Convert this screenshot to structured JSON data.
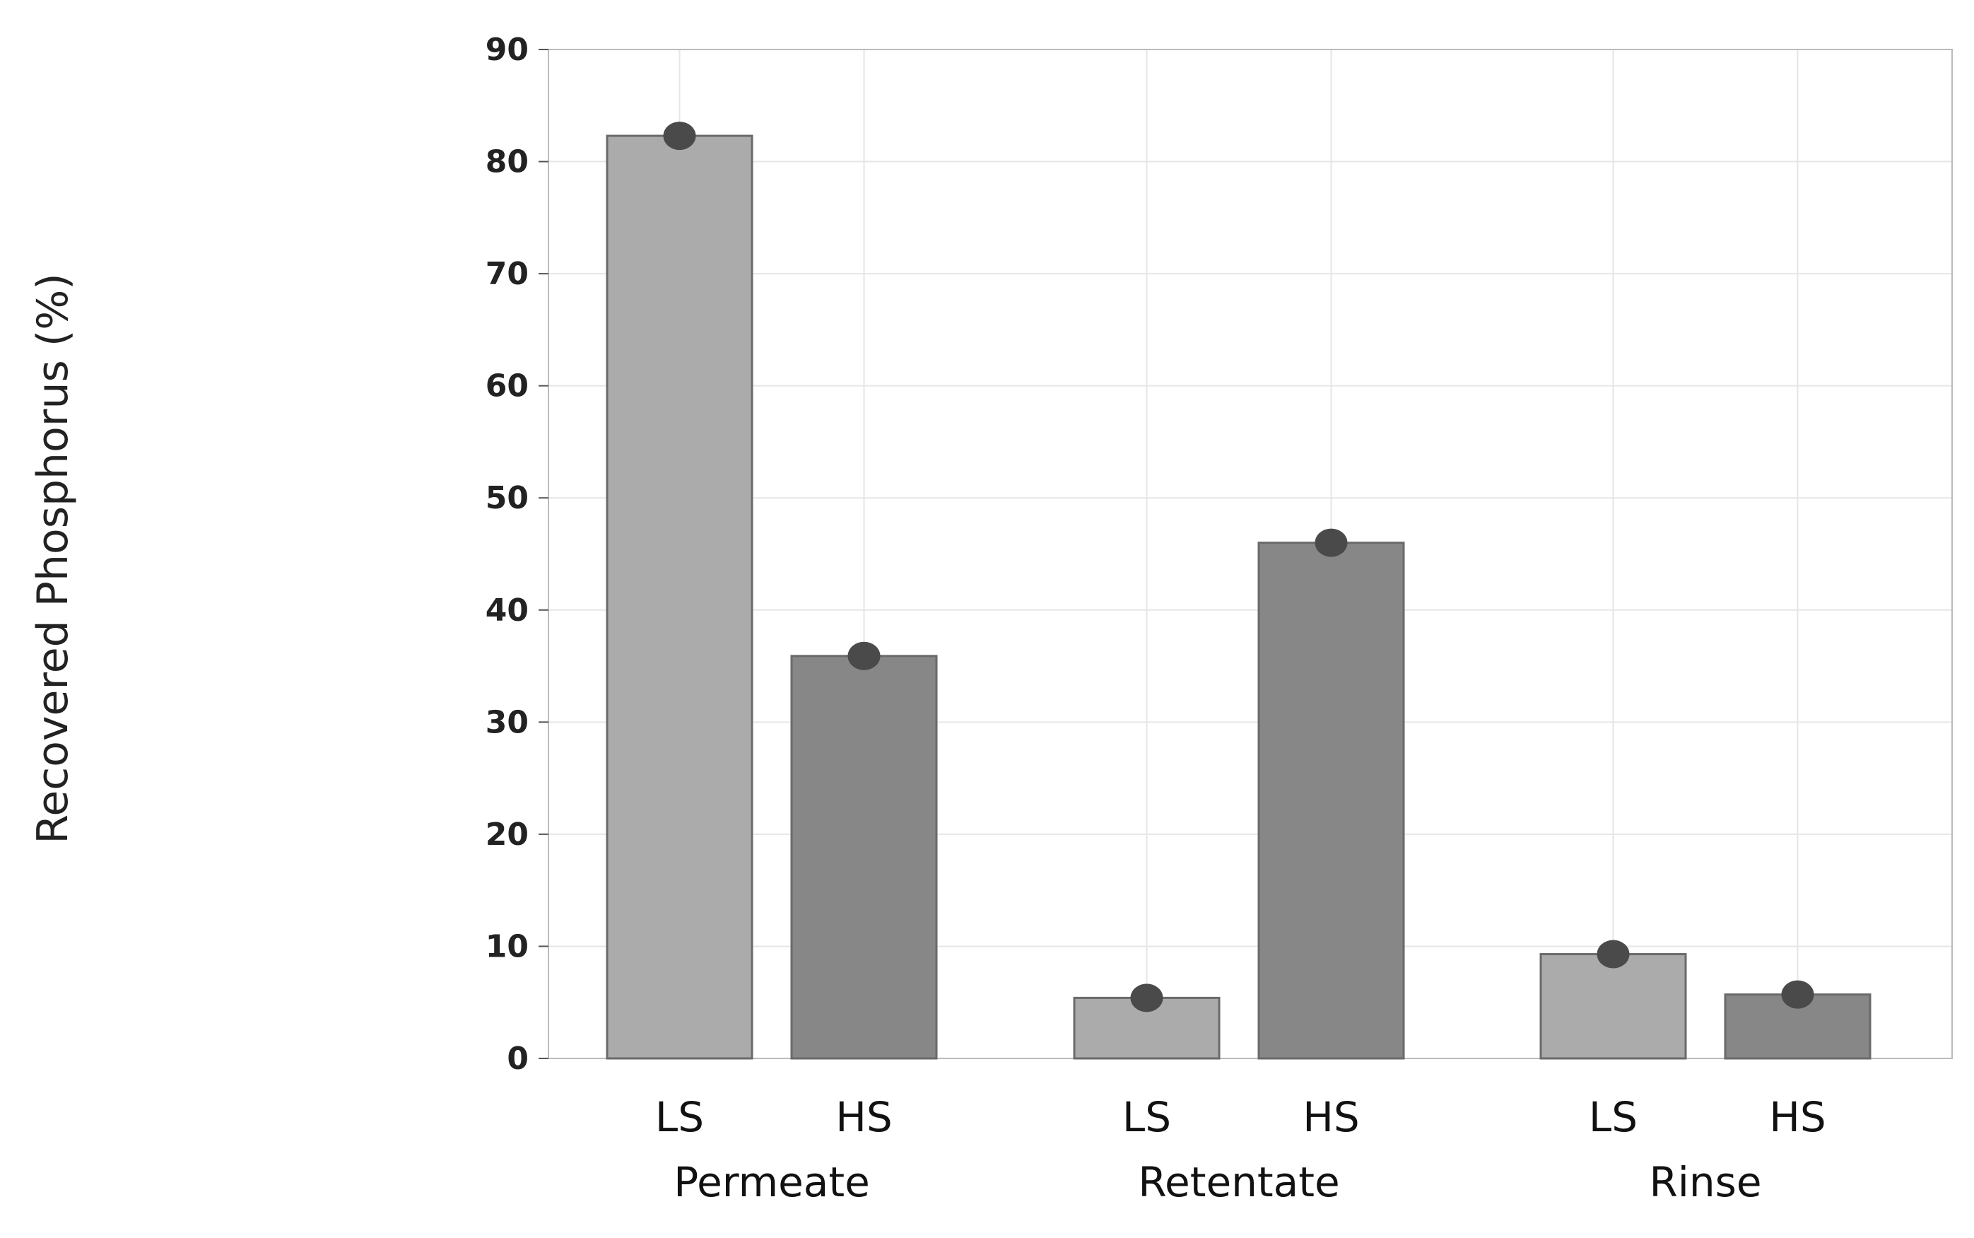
{
  "chart_data": {
    "type": "bar",
    "ylabel": "Recovered Phosphorus (%)",
    "xlabel": "",
    "ylim": [
      0,
      90
    ],
    "yticks": [
      0,
      10,
      20,
      30,
      40,
      50,
      60,
      70,
      80,
      90
    ],
    "grid": true,
    "groups": [
      {
        "name": "Permeate",
        "bars": [
          {
            "label": "LS",
            "value": 82.3
          },
          {
            "label": "HS",
            "value": 35.9
          }
        ]
      },
      {
        "name": "Retentate",
        "bars": [
          {
            "label": "LS",
            "value": 5.4
          },
          {
            "label": "HS",
            "value": 46.0
          }
        ]
      },
      {
        "name": "Rinse",
        "bars": [
          {
            "label": "LS",
            "value": 9.3
          },
          {
            "label": "HS",
            "value": 5.7
          }
        ]
      }
    ],
    "colors": {
      "LS": "#ababab",
      "HS": "#878787",
      "point": "#4a4a4a",
      "grid": "#e6e6e6",
      "frame": "#bbbbbb"
    }
  }
}
